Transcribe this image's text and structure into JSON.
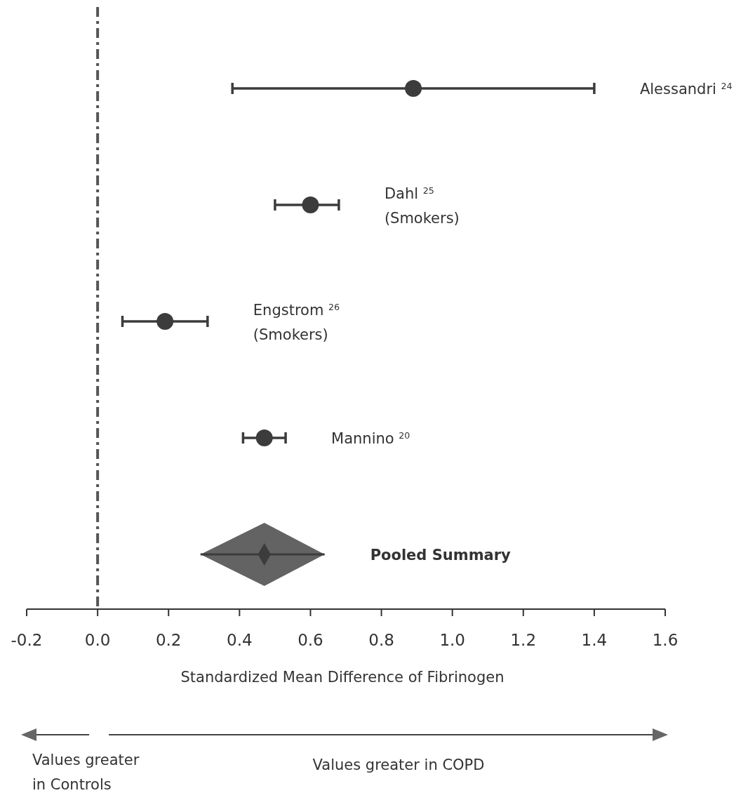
{
  "chart_data": {
    "type": "scatter",
    "orientation": "horizontal",
    "xlabel": "Standardized Mean Difference of Fibrinogen",
    "categories": [
      "Alessandri $^{24}$",
      "Dahl $^{25}$\n(Smokers)",
      "Engstrom $^{26}$\n(Smokers)",
      "Mannino $^{20}$",
      "Pooled Summary"
    ],
    "series": [
      {
        "color": "#3c3c3c",
        "marker": "circle",
        "values": [
          0.89,
          0.6,
          0.19,
          0.47,
          null
        ],
        "errors": [
          [
            0.38,
            1.4
          ],
          [
            0.5,
            0.68
          ],
          [
            0.07,
            0.31
          ],
          [
            0.41,
            0.53
          ],
          null
        ]
      },
      {
        "color": "#3c3c3c",
        "marker": "diamond",
        "values": [
          null,
          null,
          null,
          null,
          0.47
        ],
        "errors": [
          null,
          null,
          null,
          null,
          [
            0.29,
            0.64
          ]
        ]
      }
    ],
    "xlim": [
      -0.2,
      1.6
    ],
    "xticks": [
      -0.2,
      {
        "value": 0,
        "label": "0.0"
      },
      0.2,
      0.4,
      0.6,
      0.8,
      {
        "value": 1,
        "label": "1.0"
      },
      1.2,
      1.4,
      1.6
    ],
    "ref_lines": [
      {
        "axis": "x",
        "value": 0,
        "line_style": "dashed",
        "color": "#555555"
      }
    ],
    "annotations": [
      "Values greater\nin Controls",
      "Values greater in COPD"
    ]
  }
}
